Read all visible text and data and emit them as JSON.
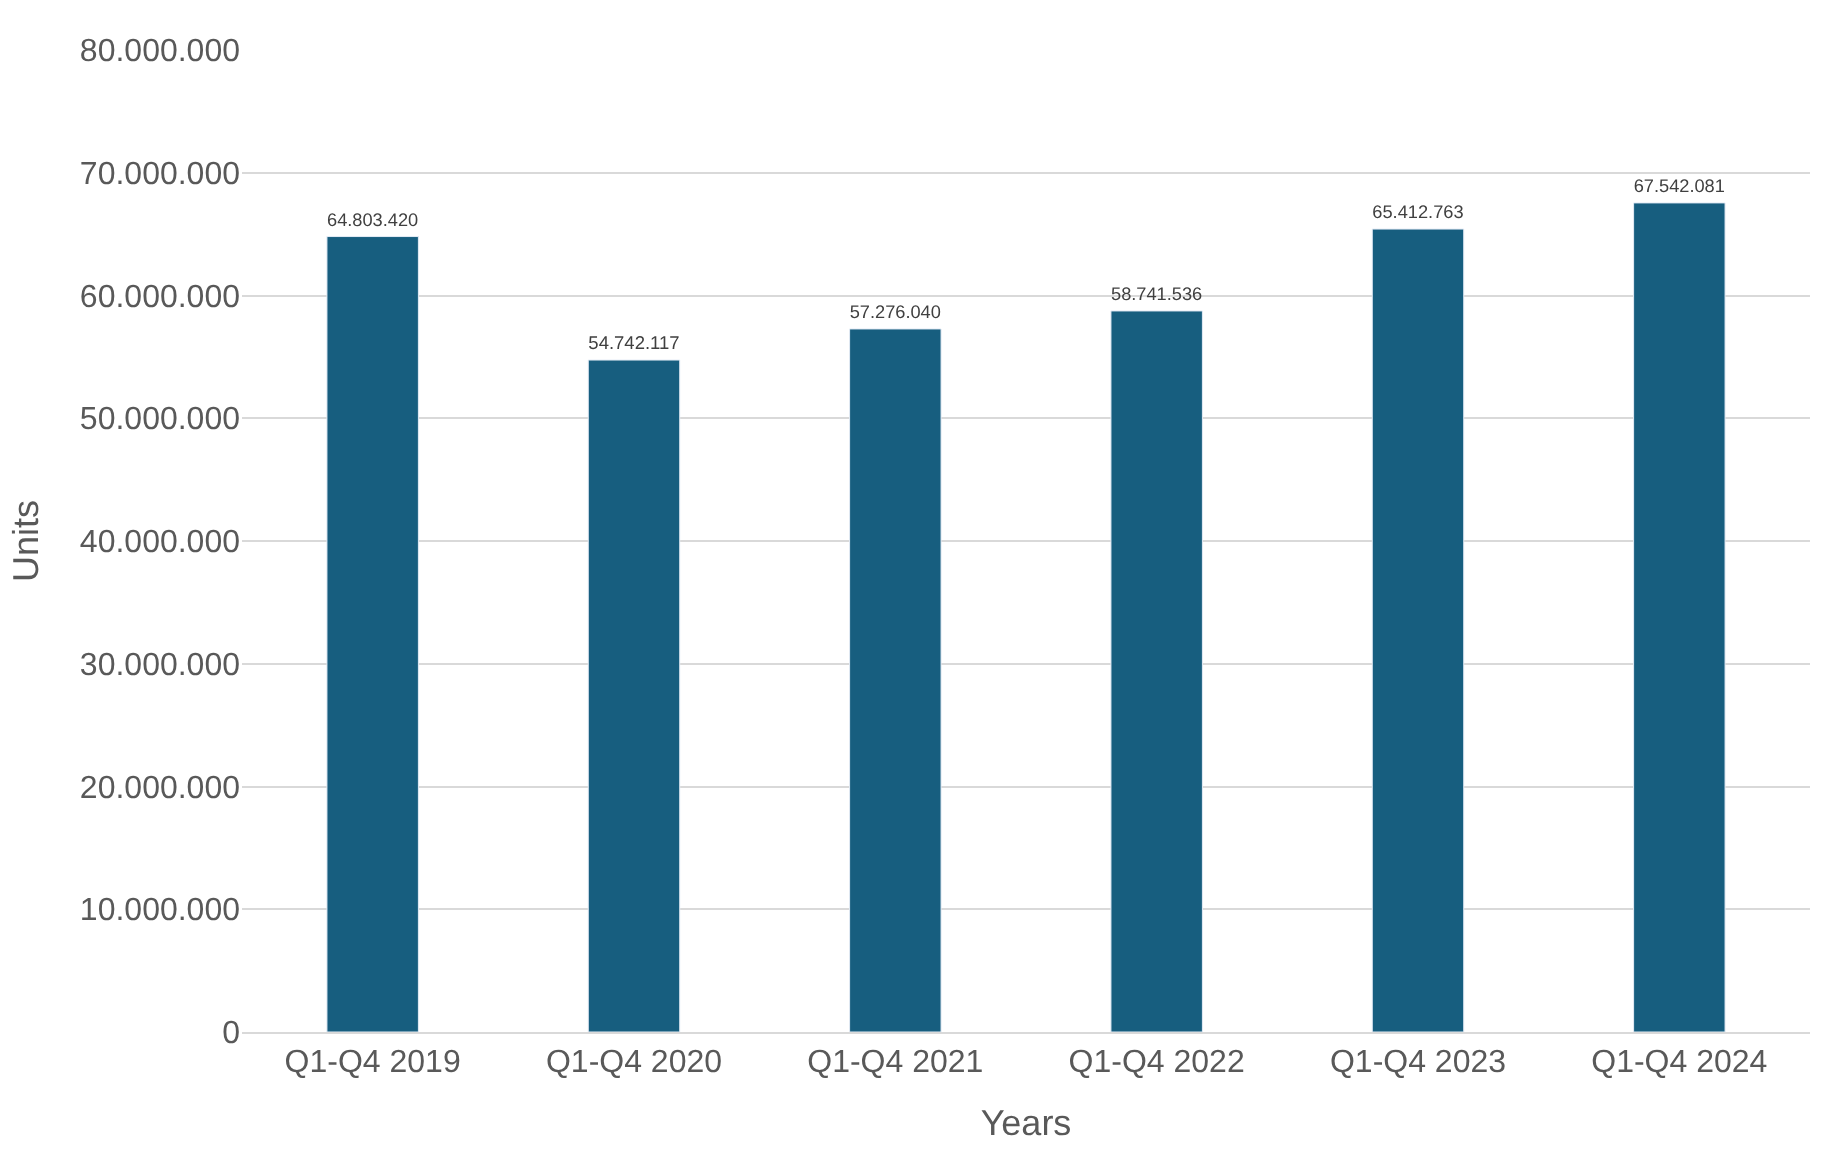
{
  "chart_data": {
    "type": "bar",
    "xlabel": "Years",
    "ylabel": "Units",
    "categories": [
      "Q1-Q4 2019",
      "Q1-Q4 2020",
      "Q1-Q4 2021",
      "Q1-Q4 2022",
      "Q1-Q4 2023",
      "Q1-Q4 2024"
    ],
    "values": [
      64803420,
      54742117,
      57276040,
      58741536,
      65412763,
      67542081
    ],
    "value_labels": [
      "64.803.420",
      "54.742.117",
      "57.276.040",
      "58.741.536",
      "65.412.763",
      "67.542.081"
    ],
    "color": "#175e7f",
    "ylim": [
      0,
      80000000
    ],
    "yticks": [
      {
        "value": 0,
        "label": "0"
      },
      {
        "value": 10000000,
        "label": "10.000.000"
      },
      {
        "value": 20000000,
        "label": "20.000.000"
      },
      {
        "value": 30000000,
        "label": "30.000.000"
      },
      {
        "value": 40000000,
        "label": "40.000.000"
      },
      {
        "value": 50000000,
        "label": "50.000.000"
      },
      {
        "value": 60000000,
        "label": "60.000.000"
      },
      {
        "value": 70000000,
        "label": "70.000.000"
      },
      {
        "value": 80000000,
        "label": "80.000.000"
      }
    ],
    "grid": "y",
    "legend": false
  }
}
